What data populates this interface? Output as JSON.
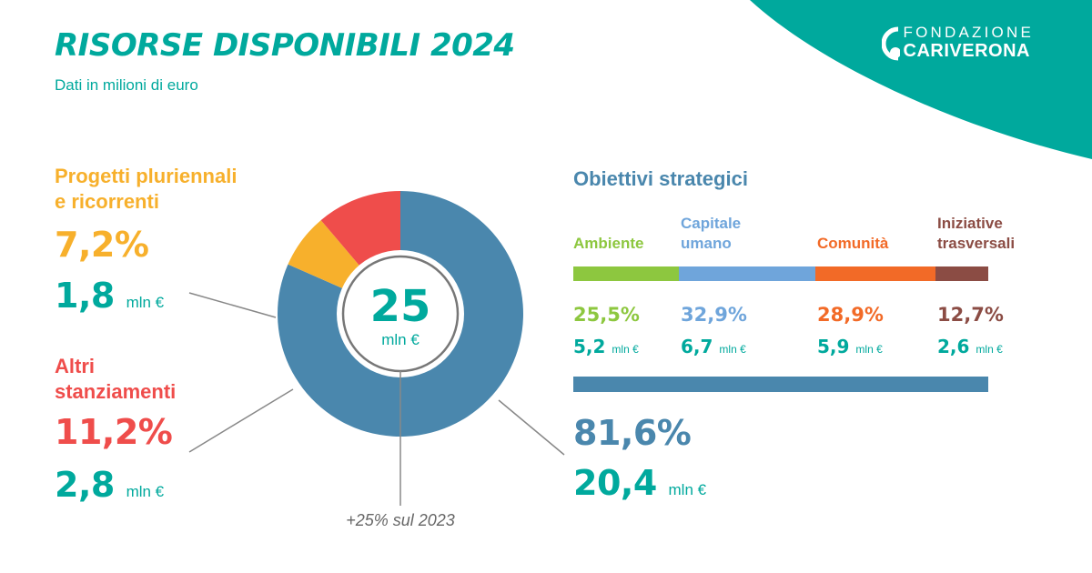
{
  "header": {
    "title": "RISORSE DISPONIBILI 2024",
    "subtitle": "Dati in milioni di euro"
  },
  "logo": {
    "top": "FONDAZIONE",
    "bottom": "CARIVERONA"
  },
  "colors": {
    "teal": "#00a99d",
    "blue": "#4a87ad",
    "yellow": "#f7b02c",
    "red": "#ef4d4b",
    "green": "#8dc73f",
    "light_blue": "#6fa5db",
    "orange": "#f26a27",
    "brown": "#8b4c44",
    "gray": "#666666"
  },
  "center": {
    "value": "25",
    "unit": "mln €",
    "growth": "+25% sul 2023"
  },
  "segments": {
    "progetti": {
      "label_1": "Progetti pluriennali",
      "label_2": "e ricorrenti",
      "pct": "7,2%",
      "amount": "1,8",
      "unit": "mln €"
    },
    "altri": {
      "label_1": "Altri",
      "label_2": "stanziamenti",
      "pct": "11,2%",
      "amount": "2,8",
      "unit": "mln €"
    },
    "obiettivi": {
      "pct": "81,6%",
      "amount": "20,4",
      "unit": "mln €"
    }
  },
  "objectives": {
    "title": "Obiettivi strategici",
    "items": [
      {
        "name": "Ambiente",
        "pct": "25,5%",
        "amount": "5,2",
        "unit": "mln €"
      },
      {
        "name": "Capitale umano",
        "name_1": "Capitale",
        "name_2": "umano",
        "pct": "32,9%",
        "amount": "6,7",
        "unit": "mln €"
      },
      {
        "name": "Comunità",
        "pct": "28,9%",
        "amount": "5,9",
        "unit": "mln €"
      },
      {
        "name": "Iniziative trasversali",
        "name_1": "Iniziative",
        "name_2": "trasversali",
        "pct": "12,7%",
        "amount": "2,6",
        "unit": "mln €"
      }
    ]
  },
  "chart_data": [
    {
      "type": "pie",
      "title": "RISORSE DISPONIBILI 2024",
      "subtitle": "Dati in milioni di euro",
      "total": 25,
      "total_unit": "mln €",
      "annotation": "+25% sul 2023",
      "slices": [
        {
          "label": "Obiettivi strategici",
          "percent": 81.6,
          "value": 20.4,
          "color": "#4a87ad"
        },
        {
          "label": "Progetti pluriennali e ricorrenti",
          "percent": 7.2,
          "value": 1.8,
          "color": "#f7b02c"
        },
        {
          "label": "Altri stanziamenti",
          "percent": 11.2,
          "value": 2.8,
          "color": "#ef4d4b"
        }
      ]
    },
    {
      "type": "bar",
      "orientation": "horizontal-stacked",
      "title": "Obiettivi strategici",
      "categories": [
        "Ambiente",
        "Capitale umano",
        "Comunità",
        "Iniziative trasversali"
      ],
      "percent": [
        25.5,
        32.9,
        28.9,
        12.7
      ],
      "values": [
        5.2,
        6.7,
        5.9,
        2.6
      ],
      "unit": "mln €",
      "colors": [
        "#8dc73f",
        "#6fa5db",
        "#f26a27",
        "#8b4c44"
      ]
    }
  ]
}
